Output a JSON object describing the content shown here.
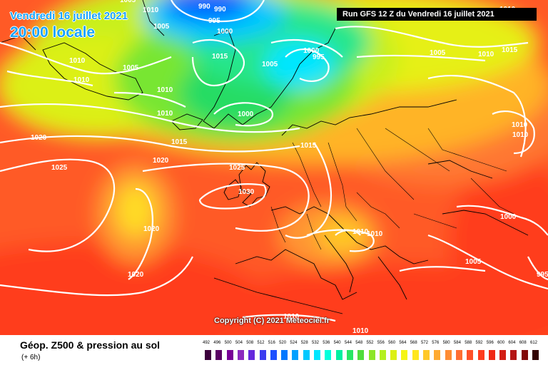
{
  "header": {
    "date_text": "Vendredi 16 juillet 2021",
    "time_text": "20:00 locale",
    "run_text": "Run GFS 12 Z du Vendredi 16 juillet 2021"
  },
  "copyright": "Copyright (C) 2021 Meteociel.fr",
  "legend": {
    "title": "Géop. Z500 & pression au sol",
    "subtitle": "(+ 6h)",
    "scale_values": [
      "492",
      "496",
      "500",
      "504",
      "508",
      "512",
      "516",
      "520",
      "524",
      "528",
      "532",
      "536",
      "540",
      "544",
      "548",
      "552",
      "556",
      "560",
      "564",
      "568",
      "572",
      "576",
      "580",
      "584",
      "588",
      "592",
      "596",
      "600",
      "604",
      "608",
      "612"
    ],
    "scale_colors": [
      "#3c003c",
      "#5a0064",
      "#780096",
      "#8c28be",
      "#6428dc",
      "#3c3cf0",
      "#1e50ff",
      "#0078ff",
      "#00a0ff",
      "#00c8ff",
      "#00e6ff",
      "#00ffdc",
      "#00f0a0",
      "#28e664",
      "#50dc3c",
      "#8ce628",
      "#b4f01e",
      "#dcf014",
      "#f5f514",
      "#ffe61e",
      "#ffc828",
      "#ffaa32",
      "#ff8c32",
      "#ff6e32",
      "#ff5028",
      "#ff3c1e",
      "#f02814",
      "#d21e14",
      "#b41414",
      "#820a0a",
      "#320000"
    ]
  },
  "isobar_labels": [
    {
      "text": "990"
    },
    {
      "text": "990"
    },
    {
      "text": "995"
    },
    {
      "text": "1000"
    },
    {
      "text": "1005"
    },
    {
      "text": "1010"
    },
    {
      "text": "1005"
    },
    {
      "text": "1010"
    },
    {
      "text": "1010"
    },
    {
      "text": "1015"
    },
    {
      "text": "1005"
    },
    {
      "text": "1000"
    },
    {
      "text": "995"
    },
    {
      "text": "1000"
    },
    {
      "text": "1010"
    },
    {
      "text": "1005"
    },
    {
      "text": "1010"
    },
    {
      "text": "1015"
    },
    {
      "text": "1005"
    },
    {
      "text": "1010"
    },
    {
      "text": "1015"
    },
    {
      "text": "1020"
    },
    {
      "text": "1025"
    },
    {
      "text": "1020"
    },
    {
      "text": "1015"
    },
    {
      "text": "1025"
    },
    {
      "text": "1030"
    },
    {
      "text": "1020"
    },
    {
      "text": "1020"
    },
    {
      "text": "1010"
    },
    {
      "text": "1010"
    },
    {
      "text": "1010"
    },
    {
      "text": "1010"
    },
    {
      "text": "1000"
    },
    {
      "text": "1005"
    },
    {
      "text": "995"
    },
    {
      "text": "1010"
    },
    {
      "text": "1010"
    },
    {
      "text": "1010"
    }
  ]
}
